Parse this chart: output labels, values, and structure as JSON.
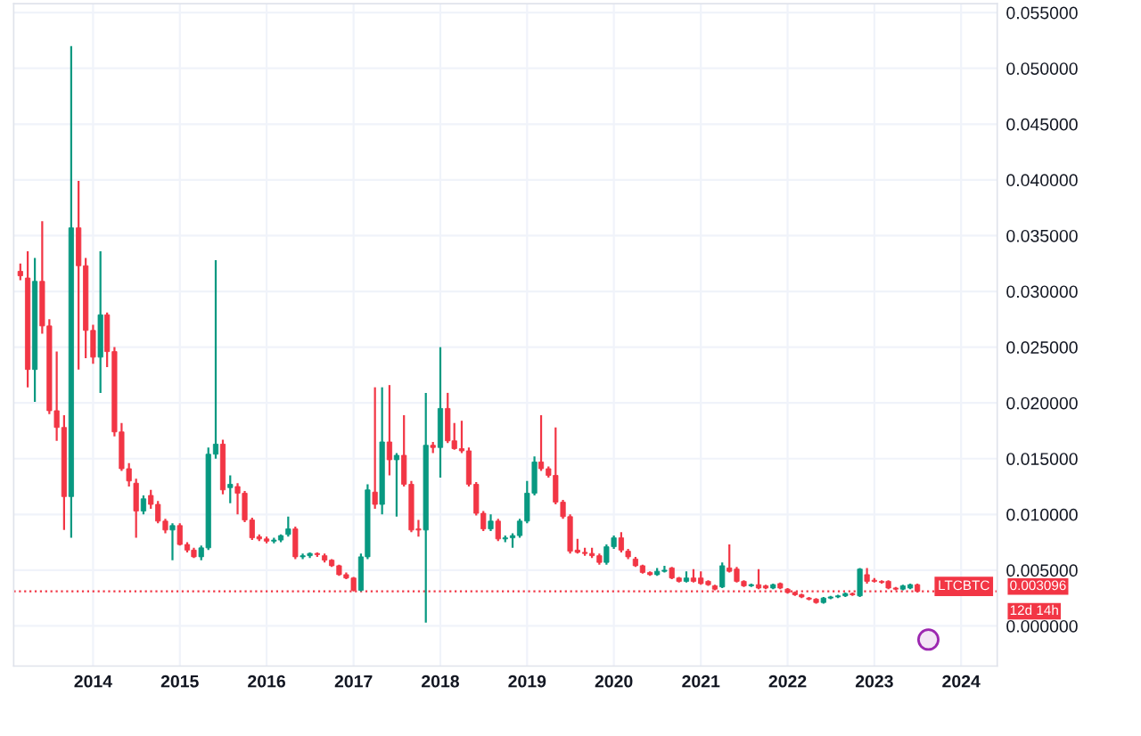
{
  "chart_data": {
    "type": "candlestick",
    "x": [
      "2013-03",
      "2013-04",
      "2013-05",
      "2013-06",
      "2013-07",
      "2013-08",
      "2013-09",
      "2013-10",
      "2013-11",
      "2013-12",
      "2014-01",
      "2014-02",
      "2014-03",
      "2014-04",
      "2014-05",
      "2014-06",
      "2014-07",
      "2014-08",
      "2014-09",
      "2014-10",
      "2014-11",
      "2014-12",
      "2015-01",
      "2015-02",
      "2015-03",
      "2015-04",
      "2015-05",
      "2015-06",
      "2015-07",
      "2015-08",
      "2015-09",
      "2015-10",
      "2015-11",
      "2015-12",
      "2016-01",
      "2016-02",
      "2016-03",
      "2016-04",
      "2016-05",
      "2016-06",
      "2016-07",
      "2016-08",
      "2016-09",
      "2016-10",
      "2016-11",
      "2016-12",
      "2017-01",
      "2017-02",
      "2017-03",
      "2017-04",
      "2017-05",
      "2017-06",
      "2017-07",
      "2017-08",
      "2017-09",
      "2017-10",
      "2017-11",
      "2017-12",
      "2018-01",
      "2018-02",
      "2018-03",
      "2018-04",
      "2018-05",
      "2018-06",
      "2018-07",
      "2018-08",
      "2018-09",
      "2018-10",
      "2018-11",
      "2018-12",
      "2019-01",
      "2019-02",
      "2019-03",
      "2019-04",
      "2019-05",
      "2019-06",
      "2019-07",
      "2019-08",
      "2019-09",
      "2019-10",
      "2019-11",
      "2019-12",
      "2020-01",
      "2020-02",
      "2020-03",
      "2020-04",
      "2020-05",
      "2020-06",
      "2020-07",
      "2020-08",
      "2020-09",
      "2020-10",
      "2020-11",
      "2020-12",
      "2021-01",
      "2021-02",
      "2021-03",
      "2021-04",
      "2021-05",
      "2021-06",
      "2021-07",
      "2021-08",
      "2021-09",
      "2021-10",
      "2021-11",
      "2021-12",
      "2022-01",
      "2022-02",
      "2022-03",
      "2022-04",
      "2022-05",
      "2022-06",
      "2022-07",
      "2022-08",
      "2022-09",
      "2022-10",
      "2022-11",
      "2022-12",
      "2023-01",
      "2023-02",
      "2023-03",
      "2023-04",
      "2023-05",
      "2023-06",
      "2023-07"
    ],
    "ohlc": [
      [
        0.0318,
        0.0325,
        0.031,
        0.0314
      ],
      [
        0.0312,
        0.0336,
        0.0214,
        0.023
      ],
      [
        0.023,
        0.033,
        0.0201,
        0.0309
      ],
      [
        0.0309,
        0.0363,
        0.0262,
        0.0269
      ],
      [
        0.0269,
        0.0275,
        0.019,
        0.0193
      ],
      [
        0.0193,
        0.0246,
        0.0166,
        0.0178
      ],
      [
        0.0178,
        0.0189,
        0.0086,
        0.0116
      ],
      [
        0.0116,
        0.052,
        0.0079,
        0.0357
      ],
      [
        0.0357,
        0.0399,
        0.023,
        0.0323
      ],
      [
        0.0323,
        0.033,
        0.024,
        0.0265
      ],
      [
        0.0265,
        0.027,
        0.0235,
        0.0241
      ],
      [
        0.0241,
        0.0336,
        0.0209,
        0.0279
      ],
      [
        0.0279,
        0.0281,
        0.0232,
        0.0246
      ],
      [
        0.0246,
        0.025,
        0.017,
        0.0174
      ],
      [
        0.0174,
        0.0182,
        0.0139,
        0.0141
      ],
      [
        0.0141,
        0.0146,
        0.0125,
        0.013
      ],
      [
        0.0128,
        0.0132,
        0.0079,
        0.0103
      ],
      [
        0.0103,
        0.0117,
        0.01,
        0.0114
      ],
      [
        0.0117,
        0.0122,
        0.0105,
        0.0109
      ],
      [
        0.0109,
        0.0112,
        0.0092,
        0.0094
      ],
      [
        0.0094,
        0.0096,
        0.0083,
        0.0086
      ],
      [
        0.0086,
        0.0092,
        0.0059,
        0.009
      ],
      [
        0.009,
        0.0092,
        0.0072,
        0.0073
      ],
      [
        0.0073,
        0.0075,
        0.0066,
        0.0068
      ],
      [
        0.0068,
        0.007,
        0.0061,
        0.0062
      ],
      [
        0.0062,
        0.0072,
        0.0059,
        0.007
      ],
      [
        0.007,
        0.016,
        0.0068,
        0.0154
      ],
      [
        0.0154,
        0.0328,
        0.015,
        0.0163
      ],
      [
        0.0163,
        0.0167,
        0.0118,
        0.0122
      ],
      [
        0.0124,
        0.0135,
        0.011,
        0.0127
      ],
      [
        0.0125,
        0.0128,
        0.01,
        0.0119
      ],
      [
        0.0119,
        0.0121,
        0.0093,
        0.0095
      ],
      [
        0.0095,
        0.0097,
        0.0077,
        0.0079
      ],
      [
        0.008,
        0.0082,
        0.0076,
        0.0078
      ],
      [
        0.0078,
        0.008,
        0.0074,
        0.0076
      ],
      [
        0.0076,
        0.0079,
        0.0074,
        0.0077
      ],
      [
        0.0077,
        0.0082,
        0.0075,
        0.0081
      ],
      [
        0.0082,
        0.0098,
        0.008,
        0.0087
      ],
      [
        0.0087,
        0.0089,
        0.006,
        0.0062
      ],
      [
        0.0062,
        0.0065,
        0.006,
        0.0063
      ],
      [
        0.0063,
        0.0066,
        0.0061,
        0.0065
      ],
      [
        0.0065,
        0.0066,
        0.0062,
        0.0064
      ],
      [
        0.0063,
        0.0065,
        0.0057,
        0.0059
      ],
      [
        0.0059,
        0.006,
        0.0053,
        0.0054
      ],
      [
        0.0054,
        0.0055,
        0.0045,
        0.0046
      ],
      [
        0.0046,
        0.0048,
        0.0042,
        0.0043
      ],
      [
        0.0043,
        0.0044,
        0.0031,
        0.0032
      ],
      [
        0.0032,
        0.0065,
        0.0031,
        0.0062
      ],
      [
        0.0062,
        0.0127,
        0.006,
        0.0122
      ],
      [
        0.012,
        0.0214,
        0.0105,
        0.0109
      ],
      [
        0.0109,
        0.0214,
        0.01,
        0.0165
      ],
      [
        0.0165,
        0.0216,
        0.0135,
        0.0149
      ],
      [
        0.0149,
        0.0155,
        0.0098,
        0.0153
      ],
      [
        0.0153,
        0.0189,
        0.0125,
        0.0127
      ],
      [
        0.0127,
        0.013,
        0.0084,
        0.0086
      ],
      [
        0.0087,
        0.0095,
        0.008,
        0.0086
      ],
      [
        0.0086,
        0.0209,
        0.0003,
        0.0162
      ],
      [
        0.0162,
        0.0165,
        0.0155,
        0.016
      ],
      [
        0.016,
        0.025,
        0.0133,
        0.0195
      ],
      [
        0.0195,
        0.0209,
        0.0164,
        0.0166
      ],
      [
        0.0166,
        0.0182,
        0.0158,
        0.0159
      ],
      [
        0.0159,
        0.0184,
        0.0155,
        0.0157
      ],
      [
        0.0157,
        0.016,
        0.0125,
        0.0127
      ],
      [
        0.0127,
        0.0129,
        0.0099,
        0.0101
      ],
      [
        0.0101,
        0.0103,
        0.0085,
        0.0087
      ],
      [
        0.0087,
        0.01,
        0.0085,
        0.0094
      ],
      [
        0.0094,
        0.0096,
        0.0076,
        0.0078
      ],
      [
        0.0078,
        0.0081,
        0.0075,
        0.0079
      ],
      [
        0.0079,
        0.0083,
        0.007,
        0.0081
      ],
      [
        0.0081,
        0.0096,
        0.0079,
        0.0094
      ],
      [
        0.0094,
        0.013,
        0.0092,
        0.0119
      ],
      [
        0.0119,
        0.0152,
        0.0117,
        0.0147
      ],
      [
        0.0147,
        0.0189,
        0.0139,
        0.0141
      ],
      [
        0.0141,
        0.0143,
        0.0133,
        0.0135
      ],
      [
        0.0135,
        0.0178,
        0.0109,
        0.0111
      ],
      [
        0.0111,
        0.0113,
        0.0096,
        0.0098
      ],
      [
        0.0098,
        0.01,
        0.0065,
        0.0067
      ],
      [
        0.0068,
        0.0078,
        0.0065,
        0.0066
      ],
      [
        0.0066,
        0.007,
        0.0063,
        0.0065
      ],
      [
        0.0065,
        0.007,
        0.0061,
        0.0063
      ],
      [
        0.0063,
        0.0065,
        0.0055,
        0.0057
      ],
      [
        0.0057,
        0.0073,
        0.0055,
        0.0071
      ],
      [
        0.0071,
        0.0081,
        0.0069,
        0.0079
      ],
      [
        0.0079,
        0.0084,
        0.0066,
        0.0068
      ],
      [
        0.0067,
        0.0069,
        0.006,
        0.0062
      ],
      [
        0.006,
        0.0062,
        0.0053,
        0.0054
      ],
      [
        0.0054,
        0.0055,
        0.0047,
        0.0048
      ],
      [
        0.0048,
        0.0049,
        0.0045,
        0.0046
      ],
      [
        0.0046,
        0.0052,
        0.0045,
        0.0049
      ],
      [
        0.0049,
        0.0054,
        0.0048,
        0.005
      ],
      [
        0.0052,
        0.0053,
        0.0042,
        0.0043
      ],
      [
        0.0043,
        0.0044,
        0.0039,
        0.004
      ],
      [
        0.004,
        0.0049,
        0.0039,
        0.0043
      ],
      [
        0.0043,
        0.0051,
        0.0039,
        0.004
      ],
      [
        0.0043,
        0.0049,
        0.0037,
        0.0038
      ],
      [
        0.004,
        0.0041,
        0.0036,
        0.0037
      ],
      [
        0.0036,
        0.0037,
        0.0032,
        0.0033
      ],
      [
        0.0035,
        0.0057,
        0.0034,
        0.0054
      ],
      [
        0.0052,
        0.0073,
        0.0048,
        0.0049
      ],
      [
        0.0051,
        0.0053,
        0.0039,
        0.004
      ],
      [
        0.004,
        0.0041,
        0.0035,
        0.0036
      ],
      [
        0.0036,
        0.0038,
        0.0035,
        0.0037
      ],
      [
        0.0037,
        0.0051,
        0.0033,
        0.0034
      ],
      [
        0.0036,
        0.0037,
        0.0033,
        0.0034
      ],
      [
        0.0034,
        0.0038,
        0.0033,
        0.0037
      ],
      [
        0.0038,
        0.0039,
        0.0033,
        0.0034
      ],
      [
        0.0033,
        0.0034,
        0.0029,
        0.003
      ],
      [
        0.003,
        0.0031,
        0.0027,
        0.0028
      ],
      [
        0.0028,
        0.0029,
        0.0025,
        0.0026
      ],
      [
        0.0025,
        0.0026,
        0.0023,
        0.0024
      ],
      [
        0.0024,
        0.0025,
        0.002,
        0.0021
      ],
      [
        0.0021,
        0.0026,
        0.002,
        0.0025
      ],
      [
        0.0025,
        0.0027,
        0.0024,
        0.0026
      ],
      [
        0.0026,
        0.0028,
        0.0025,
        0.0027
      ],
      [
        0.0027,
        0.003,
        0.0026,
        0.0029
      ],
      [
        0.0029,
        0.003,
        0.0027,
        0.0028
      ],
      [
        0.0027,
        0.0052,
        0.0026,
        0.0051
      ],
      [
        0.0046,
        0.0052,
        0.0038,
        0.004
      ],
      [
        0.0041,
        0.0043,
        0.0039,
        0.004
      ],
      [
        0.004,
        0.0041,
        0.0038,
        0.0039
      ],
      [
        0.004,
        0.0041,
        0.0033,
        0.0034
      ],
      [
        0.0034,
        0.0035,
        0.0032,
        0.0033
      ],
      [
        0.0033,
        0.0037,
        0.0032,
        0.0036
      ],
      [
        0.0034,
        0.0038,
        0.0033,
        0.0037
      ],
      [
        0.0037,
        0.0038,
        0.003,
        0.0031
      ]
    ],
    "colors": [
      "#f23645",
      "#f23645",
      "#089981",
      "#f23645",
      "#f23645",
      "#f23645",
      "#f23645",
      "#089981",
      "#f23645",
      "#f23645",
      "#f23645",
      "#089981",
      "#f23645",
      "#f23645",
      "#f23645",
      "#f23645",
      "#f23645",
      "#089981",
      "#f23645",
      "#f23645",
      "#f23645",
      "#089981",
      "#f23645",
      "#f23645",
      "#f23645",
      "#089981",
      "#089981",
      "#089981",
      "#f23645",
      "#089981",
      "#f23645",
      "#f23645",
      "#f23645",
      "#f23645",
      "#f23645",
      "#089981",
      "#089981",
      "#089981",
      "#f23645",
      "#089981",
      "#089981",
      "#f23645",
      "#f23645",
      "#f23645",
      "#f23645",
      "#f23645",
      "#f23645",
      "#089981",
      "#089981",
      "#f23645",
      "#089981",
      "#f23645",
      "#089981",
      "#f23645",
      "#f23645",
      "#f23645",
      "#089981",
      "#f23645",
      "#089981",
      "#f23645",
      "#f23645",
      "#f23645",
      "#f23645",
      "#f23645",
      "#f23645",
      "#089981",
      "#f23645",
      "#089981",
      "#089981",
      "#089981",
      "#089981",
      "#089981",
      "#f23645",
      "#f23645",
      "#f23645",
      "#f23645",
      "#f23645",
      "#f23645",
      "#f23645",
      "#f23645",
      "#f23645",
      "#089981",
      "#089981",
      "#f23645",
      "#f23645",
      "#f23645",
      "#f23645",
      "#f23645",
      "#089981",
      "#089981",
      "#f23645",
      "#f23645",
      "#089981",
      "#f23645",
      "#f23645",
      "#f23645",
      "#f23645",
      "#089981",
      "#f23645",
      "#f23645",
      "#f23645",
      "#089981",
      "#f23645",
      "#f23645",
      "#089981",
      "#f23645",
      "#f23645",
      "#f23645",
      "#f23645",
      "#f23645",
      "#f23645",
      "#089981",
      "#089981",
      "#089981",
      "#089981",
      "#f23645",
      "#089981",
      "#f23645",
      "#f23645",
      "#f23645",
      "#f23645",
      "#f23645",
      "#089981",
      "#089981",
      "#f23645"
    ],
    "xlim": [
      "2013-02",
      "2024-06"
    ],
    "xticks": [
      {
        "value": "2014-01",
        "label": "2014"
      },
      {
        "value": "2015-01",
        "label": "2015"
      },
      {
        "value": "2016-01",
        "label": "2016"
      },
      {
        "value": "2017-01",
        "label": "2017"
      },
      {
        "value": "2018-01",
        "label": "2018"
      },
      {
        "value": "2019-01",
        "label": "2019"
      },
      {
        "value": "2020-01",
        "label": "2020"
      },
      {
        "value": "2021-01",
        "label": "2021"
      },
      {
        "value": "2022-01",
        "label": "2022"
      },
      {
        "value": "2023-01",
        "label": "2023"
      },
      {
        "value": "2024-01",
        "label": "2024"
      }
    ],
    "ylim": [
      -0.0036,
      0.0558
    ],
    "yticks": [
      {
        "value": 0,
        "label": "0.000000"
      },
      {
        "value": 0.005,
        "label": "0.005000"
      },
      {
        "value": 0.01,
        "label": "0.010000"
      },
      {
        "value": 0.015,
        "label": "0.015000"
      },
      {
        "value": 0.02,
        "label": "0.020000"
      },
      {
        "value": 0.025,
        "label": "0.025000"
      },
      {
        "value": 0.03,
        "label": "0.030000"
      },
      {
        "value": 0.035,
        "label": "0.035000"
      },
      {
        "value": 0.04,
        "label": "0.040000"
      },
      {
        "value": 0.045,
        "label": "0.045000"
      },
      {
        "value": 0.05,
        "label": "0.050000"
      },
      {
        "value": 0.055,
        "label": "0.055000"
      }
    ],
    "grid": true,
    "ref_lines": [
      {
        "axis": "y",
        "value": 0.003096,
        "label": "0.003096",
        "color": "#f23645",
        "line_style": "dotted"
      }
    ],
    "annotations": [
      "LTCBTC",
      "12d 14h"
    ]
  }
}
